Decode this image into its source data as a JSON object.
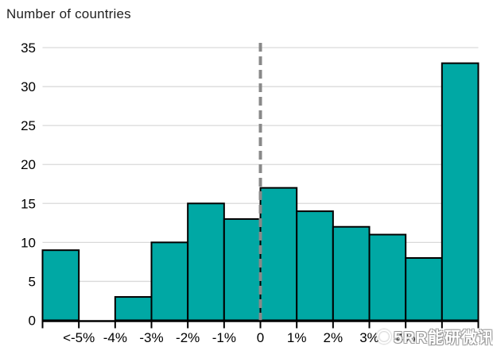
{
  "chart_data": {
    "type": "bar",
    "subtype": "histogram",
    "title": "Number of countries",
    "values": [
      9,
      0,
      3,
      10,
      15,
      13,
      17,
      14,
      12,
      11,
      8,
      33
    ],
    "bin_edge_labels": [
      "",
      "<-5%",
      "-4%",
      "-3%",
      "-2%",
      "-1%",
      "0",
      "1%",
      "2%",
      "3%",
      "4%",
      "",
      ""
    ],
    "yticks": [
      0,
      5,
      10,
      15,
      20,
      25,
      30,
      35
    ],
    "ylim": [
      0,
      35
    ],
    "grid": "horizontal",
    "zero_line_edge_index": 6,
    "zero_line_style": "dashed",
    "legend": "none"
  },
  "colors": {
    "bar_fill": "#00a8a4",
    "bar_stroke": "#000000",
    "gridline": "#d9d9d9",
    "axis": "#000000",
    "zero_line": "#898989",
    "tick_label": "#000000",
    "title_text": "#1f1f1f",
    "background": "#ffffff",
    "watermark": "#ffffff"
  },
  "watermark": {
    "text": "5RR能研微讯",
    "logo": "circle-logo-icon"
  }
}
